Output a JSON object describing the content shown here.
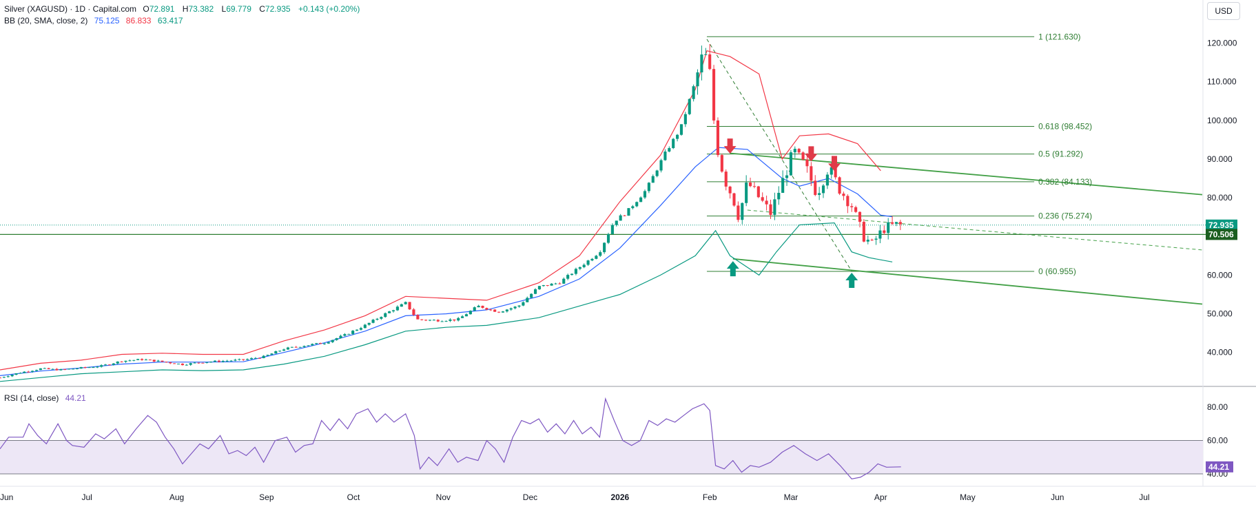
{
  "legend": {
    "symbol": "Silver (XAGUSD) · 1D · Capital.com",
    "open_label": "O",
    "open": "72.891",
    "high_label": "H",
    "high": "73.382",
    "low_label": "L",
    "low": "69.779",
    "close_label": "C",
    "close": "72.935",
    "change": "+0.143 (+0.20%)",
    "bb_label": "BB (20, SMA, close, 2)",
    "bb_basis": "75.125",
    "bb_upper": "86.833",
    "bb_lower": "63.417",
    "rsi_label": "RSI (14, close)",
    "rsi_value": "44.21"
  },
  "currency": "USD",
  "colors": {
    "up": "#089981",
    "down": "#f23645",
    "bb_basis": "#2962ff",
    "bb_upper": "#f23645",
    "bb_lower": "#089981",
    "fib": "#2e7d32",
    "channel": "#43a047",
    "rsi": "#7e57c2",
    "rsi_band": "#ede7f6",
    "axis_text": "#131722",
    "grid": "#ffffff"
  },
  "chart_data": [
    {
      "type": "candlestick",
      "title": "Silver (XAGUSD)",
      "yticks": [
        40,
        50,
        60,
        70,
        80,
        90,
        100,
        110,
        120
      ],
      "ytick_labels": [
        "40.000",
        "50.000",
        "60.000",
        "70.000",
        "80.000",
        "90.000",
        "100.000",
        "110.000",
        "120.000"
      ],
      "ylim": [
        31.4,
        124.0
      ],
      "xticks": [
        {
          "label": "Jun",
          "day": 0
        },
        {
          "label": "Jul",
          "day": 30
        },
        {
          "label": "Aug",
          "day": 61
        },
        {
          "label": "Sep",
          "day": 92
        },
        {
          "label": "Oct",
          "day": 122
        },
        {
          "label": "Nov",
          "day": 153
        },
        {
          "label": "Dec",
          "day": 183
        },
        {
          "label": "2026",
          "day": 214
        },
        {
          "label": "Feb",
          "day": 245
        },
        {
          "label": "Mar",
          "day": 273
        },
        {
          "label": "Apr",
          "day": 304
        },
        {
          "label": "May",
          "day": 334
        },
        {
          "label": "Jun",
          "day": 365
        },
        {
          "label": "Jul",
          "day": 395
        }
      ],
      "xlim_days": [
        0,
        415
      ],
      "close_series": [
        [
          0,
          33.5
        ],
        [
          7,
          34.8
        ],
        [
          14,
          35.8
        ],
        [
          21,
          35.5
        ],
        [
          28,
          36.0
        ],
        [
          35,
          36.5
        ],
        [
          42,
          37.8
        ],
        [
          49,
          38.2
        ],
        [
          56,
          37.6
        ],
        [
          63,
          36.9
        ],
        [
          70,
          37.5
        ],
        [
          77,
          37.8
        ],
        [
          84,
          38.1
        ],
        [
          91,
          38.9
        ],
        [
          98,
          40.9
        ],
        [
          105,
          41.8
        ],
        [
          112,
          42.5
        ],
        [
          119,
          44.5
        ],
        [
          126,
          47.0
        ],
        [
          133,
          50.0
        ],
        [
          140,
          52.8
        ],
        [
          144,
          48.5
        ],
        [
          151,
          48.3
        ],
        [
          158,
          48.5
        ],
        [
          165,
          52.0
        ],
        [
          172,
          50.5
        ],
        [
          179,
          52.0
        ],
        [
          186,
          57.0
        ],
        [
          193,
          58.0
        ],
        [
          200,
          62.0
        ],
        [
          207,
          66.0
        ],
        [
          212,
          74.0
        ],
        [
          216,
          76.0
        ],
        [
          223,
          82.0
        ],
        [
          230,
          92.0
        ],
        [
          235,
          98.0
        ],
        [
          240,
          110.0
        ],
        [
          243,
          118.0
        ],
        [
          245,
          112.0
        ],
        [
          247,
          95.0
        ],
        [
          250,
          85.0
        ],
        [
          253,
          80.0
        ],
        [
          255,
          75.0
        ],
        [
          258,
          84.0
        ],
        [
          262,
          80.0
        ],
        [
          266,
          76.0
        ],
        [
          270,
          84.0
        ],
        [
          274,
          92.0
        ],
        [
          278,
          88.0
        ],
        [
          282,
          81.0
        ],
        [
          286,
          88.0
        ],
        [
          290,
          82.0
        ],
        [
          294,
          78.0
        ],
        [
          298,
          70.0
        ],
        [
          301,
          68.0
        ],
        [
          305,
          72.0
        ],
        [
          309,
          73.0
        ],
        [
          311,
          72.9
        ]
      ],
      "bb_upper_series": [
        [
          0,
          35.5
        ],
        [
          14,
          37.2
        ],
        [
          28,
          38.0
        ],
        [
          42,
          39.5
        ],
        [
          56,
          39.8
        ],
        [
          70,
          39.5
        ],
        [
          84,
          39.5
        ],
        [
          98,
          43.0
        ],
        [
          112,
          45.8
        ],
        [
          126,
          49.5
        ],
        [
          140,
          54.5
        ],
        [
          154,
          54.0
        ],
        [
          168,
          53.5
        ],
        [
          186,
          58.0
        ],
        [
          200,
          65.0
        ],
        [
          214,
          79.0
        ],
        [
          228,
          91.0
        ],
        [
          240,
          108.0
        ],
        [
          244,
          118.0
        ],
        [
          252,
          116.5
        ],
        [
          262,
          112.0
        ],
        [
          270,
          90.0
        ],
        [
          276,
          96.0
        ],
        [
          286,
          96.5
        ],
        [
          296,
          94.0
        ],
        [
          304,
          87.0
        ]
      ],
      "bb_basis_series": [
        [
          0,
          34.0
        ],
        [
          14,
          35.2
        ],
        [
          28,
          36.0
        ],
        [
          42,
          37.0
        ],
        [
          56,
          37.5
        ],
        [
          70,
          37.5
        ],
        [
          84,
          37.6
        ],
        [
          98,
          40.0
        ],
        [
          112,
          42.5
        ],
        [
          126,
          45.5
        ],
        [
          140,
          49.5
        ],
        [
          154,
          50.0
        ],
        [
          168,
          51.0
        ],
        [
          186,
          54.5
        ],
        [
          200,
          59.0
        ],
        [
          214,
          67.0
        ],
        [
          228,
          78.0
        ],
        [
          240,
          88.0
        ],
        [
          248,
          93.0
        ],
        [
          258,
          92.5
        ],
        [
          270,
          85.0
        ],
        [
          276,
          83.0
        ],
        [
          286,
          85.0
        ],
        [
          296,
          81.0
        ],
        [
          304,
          75.5
        ],
        [
          308,
          75.1
        ]
      ],
      "bb_lower_series": [
        [
          0,
          32.5
        ],
        [
          14,
          33.5
        ],
        [
          28,
          34.5
        ],
        [
          42,
          35.0
        ],
        [
          56,
          35.5
        ],
        [
          70,
          35.3
        ],
        [
          84,
          35.5
        ],
        [
          98,
          37.0
        ],
        [
          112,
          39.0
        ],
        [
          126,
          42.0
        ],
        [
          140,
          45.5
        ],
        [
          154,
          46.5
        ],
        [
          168,
          47.0
        ],
        [
          186,
          49.0
        ],
        [
          200,
          52.0
        ],
        [
          214,
          55.0
        ],
        [
          228,
          60.0
        ],
        [
          240,
          65.0
        ],
        [
          247,
          71.5
        ],
        [
          252,
          65.0
        ],
        [
          262,
          60.0
        ],
        [
          268,
          66.0
        ],
        [
          276,
          73.0
        ],
        [
          288,
          73.5
        ],
        [
          294,
          66.0
        ],
        [
          300,
          64.5
        ],
        [
          308,
          63.4
        ]
      ],
      "fib_levels": [
        {
          "ratio": "1",
          "value": 121.63,
          "label": "1 (121.630)"
        },
        {
          "ratio": "0.618",
          "value": 98.452,
          "label": "0.618 (98.452)"
        },
        {
          "ratio": "0.5",
          "value": 91.292,
          "label": "0.5 (91.292)"
        },
        {
          "ratio": "0.382",
          "value": 84.133,
          "label": "0.382 (84.133)"
        },
        {
          "ratio": "0.236",
          "value": 75.274,
          "label": "0.236 (75.274)"
        },
        {
          "ratio": "0",
          "value": 60.955,
          "label": "0 (60.955)"
        }
      ],
      "support_level": 70.506,
      "support_label": "70.506",
      "last_price": 72.935,
      "last_price_label": "72.935",
      "channel_upper": [
        [
          252,
          91.5
        ],
        [
          415,
          80.8
        ]
      ],
      "channel_lower": [
        [
          253,
          64.2
        ],
        [
          415,
          52.5
        ]
      ],
      "trend_dashed": [
        [
          244,
          121.0
        ],
        [
          294,
          61.0
        ]
      ],
      "resistance_dashed": [
        [
          258,
          76.8
        ],
        [
          415,
          66.5
        ]
      ],
      "sell_arrows": [
        {
          "day": 252,
          "value": 93.0
        },
        {
          "day": 280,
          "value": 91.0
        },
        {
          "day": 288,
          "value": 88.5
        }
      ],
      "buy_arrows": [
        {
          "day": 253,
          "value": 62.0
        },
        {
          "day": 294,
          "value": 59.0
        }
      ]
    },
    {
      "type": "line",
      "title": "RSI (14, close)",
      "yticks": [
        40,
        60,
        80
      ],
      "ytick_labels": [
        "40.00",
        "60.00",
        "80.00"
      ],
      "ylim": [
        33,
        92
      ],
      "band": [
        40,
        60
      ],
      "last_value": 44.21,
      "last_value_label": "44.21",
      "series": [
        [
          0,
          55
        ],
        [
          3,
          62
        ],
        [
          8,
          62
        ],
        [
          10,
          70
        ],
        [
          13,
          63
        ],
        [
          16,
          58
        ],
        [
          20,
          70
        ],
        [
          23,
          60
        ],
        [
          25,
          57
        ],
        [
          29,
          56
        ],
        [
          33,
          64
        ],
        [
          36,
          61
        ],
        [
          40,
          67
        ],
        [
          43,
          58
        ],
        [
          47,
          67
        ],
        [
          51,
          75
        ],
        [
          54,
          71
        ],
        [
          57,
          62
        ],
        [
          60,
          55
        ],
        [
          63,
          46
        ],
        [
          66,
          52
        ],
        [
          69,
          58
        ],
        [
          72,
          55
        ],
        [
          76,
          63
        ],
        [
          79,
          52
        ],
        [
          82,
          54
        ],
        [
          85,
          51
        ],
        [
          88,
          56
        ],
        [
          91,
          47
        ],
        [
          95,
          60
        ],
        [
          99,
          62
        ],
        [
          102,
          53
        ],
        [
          105,
          57
        ],
        [
          108,
          58
        ],
        [
          111,
          72
        ],
        [
          114,
          66
        ],
        [
          117,
          73
        ],
        [
          120,
          67
        ],
        [
          123,
          76
        ],
        [
          127,
          79
        ],
        [
          130,
          71
        ],
        [
          133,
          76
        ],
        [
          136,
          71
        ],
        [
          140,
          76
        ],
        [
          143,
          63
        ],
        [
          145,
          43
        ],
        [
          148,
          50
        ],
        [
          151,
          45
        ],
        [
          155,
          55
        ],
        [
          158,
          47
        ],
        [
          161,
          50
        ],
        [
          165,
          48
        ],
        [
          168,
          60
        ],
        [
          171,
          55
        ],
        [
          174,
          47
        ],
        [
          177,
          62
        ],
        [
          180,
          72
        ],
        [
          183,
          70
        ],
        [
          186,
          73
        ],
        [
          189,
          65
        ],
        [
          192,
          70
        ],
        [
          195,
          64
        ],
        [
          198,
          72
        ],
        [
          201,
          64
        ],
        [
          204,
          68
        ],
        [
          207,
          62
        ],
        [
          209,
          85
        ],
        [
          212,
          72
        ],
        [
          215,
          60
        ],
        [
          218,
          57
        ],
        [
          221,
          60
        ],
        [
          224,
          72
        ],
        [
          227,
          69
        ],
        [
          230,
          73
        ],
        [
          233,
          71
        ],
        [
          236,
          75
        ],
        [
          239,
          79
        ],
        [
          243,
          82
        ],
        [
          245,
          78
        ],
        [
          247,
          45
        ],
        [
          250,
          43
        ],
        [
          253,
          48
        ],
        [
          256,
          41
        ],
        [
          259,
          45
        ],
        [
          262,
          44
        ],
        [
          266,
          47
        ],
        [
          270,
          53
        ],
        [
          274,
          57
        ],
        [
          278,
          52
        ],
        [
          282,
          48
        ],
        [
          286,
          52
        ],
        [
          290,
          45
        ],
        [
          294,
          37
        ],
        [
          297,
          38
        ],
        [
          300,
          41
        ],
        [
          303,
          46
        ],
        [
          306,
          44
        ],
        [
          311,
          44.21
        ]
      ]
    }
  ]
}
